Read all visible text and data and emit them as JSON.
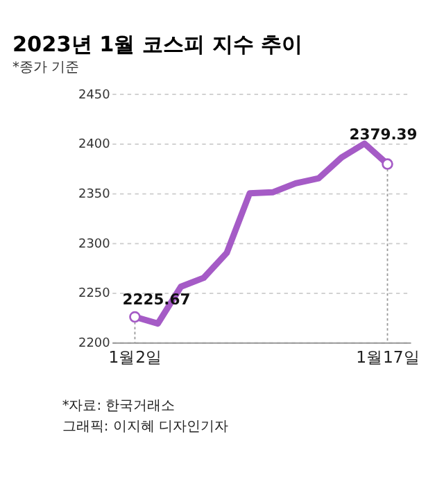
{
  "chart_data": {
    "type": "line",
    "title": "2023년 1월 코스피 지수 추이",
    "subtitle": "*종가 기준",
    "categories": [
      "1월2일",
      null,
      null,
      null,
      null,
      null,
      null,
      null,
      null,
      null,
      null,
      "1월17일"
    ],
    "series": [
      {
        "color": "#a55bc6",
        "values": [
          2225.67,
          2219,
          2256,
          2265,
          2290,
          2350,
          2351,
          2360,
          2365,
          2386,
          2400,
          2379.39
        ],
        "value_labels": [
          "2225.67",
          null,
          null,
          null,
          null,
          null,
          null,
          null,
          null,
          null,
          null,
          "2379.39"
        ]
      }
    ],
    "ylim": [
      2200,
      2450
    ],
    "yticks": [
      2200,
      2250,
      2300,
      2350,
      2400,
      2450
    ],
    "grid": "y",
    "line_style": "solid",
    "annotations": [
      "*자료: 한국거래소",
      "그래픽: 이지혜 디자인기자"
    ]
  }
}
